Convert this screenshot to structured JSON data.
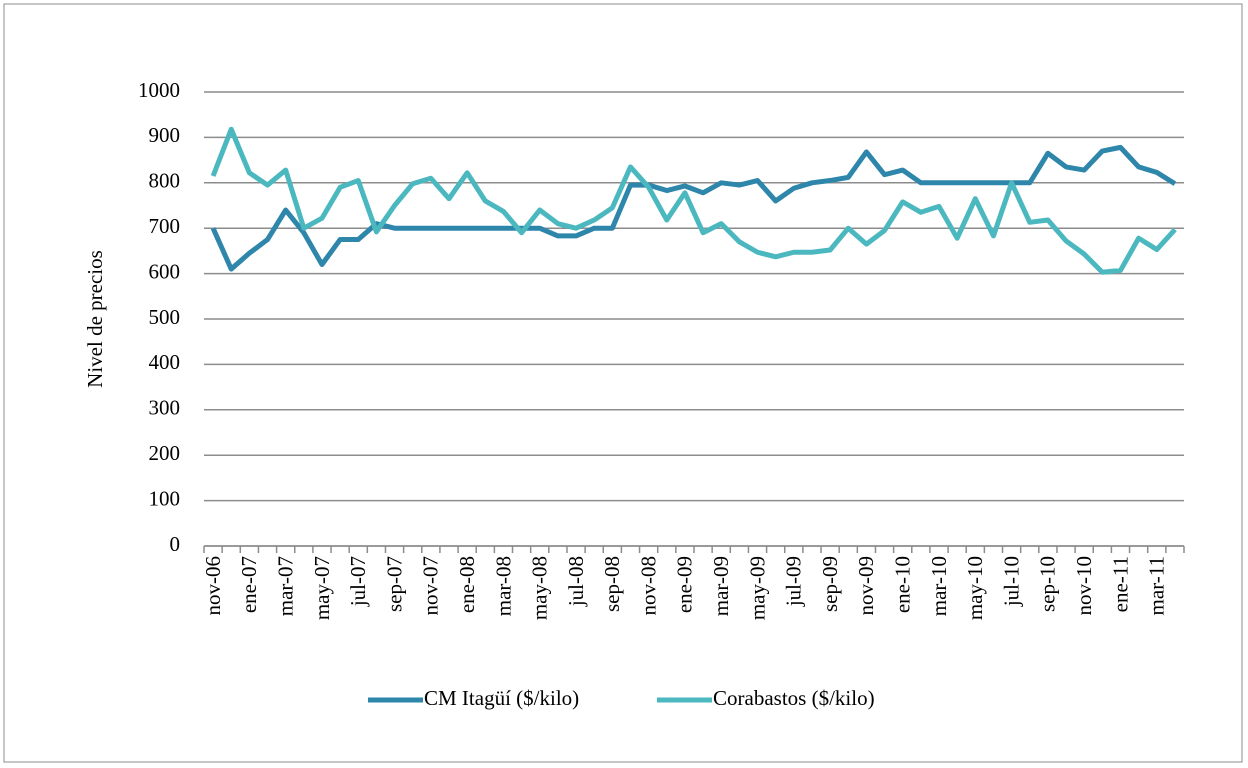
{
  "chart_data": {
    "type": "line",
    "y_label": "Nivel de precios",
    "categories": [
      "nov-06",
      null,
      "ene-07",
      null,
      "mar-07",
      null,
      "may-07",
      null,
      "jul-07",
      null,
      "sep-07",
      null,
      "nov-07",
      null,
      "ene-08",
      null,
      "mar-08",
      null,
      "may-08",
      null,
      "jul-08",
      null,
      "sep-08",
      null,
      "nov-08",
      null,
      "ene-09",
      null,
      "mar-09",
      null,
      "may-09",
      null,
      "jul-09",
      null,
      "sep-09",
      null,
      "nov-09",
      null,
      "ene-10",
      null,
      "mar-10",
      null,
      "may-10",
      null,
      "jul-10",
      null,
      "sep-10",
      null,
      "nov-10",
      null,
      "ene-11",
      null,
      "mar-11",
      null
    ],
    "series": [
      {
        "name": "CM Itagüí ($/kilo)",
        "color": "#2e86ab",
        "values": [
          700,
          610,
          645,
          675,
          740,
          690,
          620,
          675,
          675,
          710,
          700,
          700,
          700,
          700,
          700,
          700,
          700,
          700,
          700,
          683,
          683,
          700,
          700,
          795,
          795,
          783,
          793,
          778,
          800,
          795,
          805,
          760,
          788,
          800,
          805,
          812,
          868,
          818,
          828,
          800,
          800,
          800,
          800,
          800,
          800,
          800,
          865,
          835,
          828,
          870,
          878,
          835,
          823,
          798
        ]
      },
      {
        "name": "Corabastos ($/kilo)",
        "color": "#4bb8c0",
        "values": [
          815,
          918,
          822,
          795,
          828,
          700,
          722,
          790,
          805,
          692,
          750,
          798,
          810,
          765,
          822,
          760,
          737,
          690,
          740,
          710,
          700,
          718,
          745,
          835,
          790,
          718,
          778,
          690,
          710,
          670,
          647,
          637,
          647,
          647,
          652,
          700,
          665,
          695,
          758,
          735,
          748,
          678,
          765,
          683,
          800,
          713,
          718,
          672,
          643,
          603,
          607,
          678,
          653,
          697
        ]
      }
    ],
    "ylim": [
      0,
      1000
    ],
    "yticks": [
      0,
      100,
      200,
      300,
      400,
      500,
      600,
      700,
      800,
      900,
      1000
    ],
    "grid": true,
    "legend": "bottom"
  }
}
